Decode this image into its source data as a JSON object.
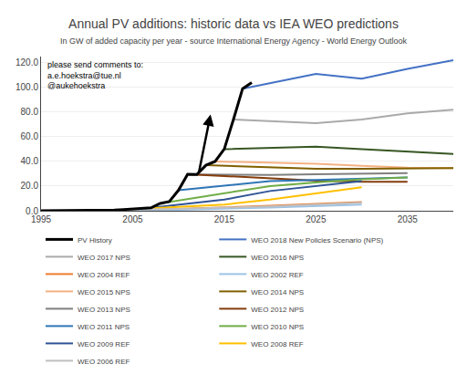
{
  "chart_data": {
    "type": "line",
    "title": "Annual PV additions: historic data vs IEA WEO predictions",
    "subtitle": "In GW of added capacity per year - source International Energy Agency - World Energy Outlook",
    "annotations": [
      "please send comments to:\na.e.hoekstra@tue.nl\n@aukehoekstra"
    ],
    "arrow": {
      "from": [
        2012.2,
        30.0
      ],
      "to": [
        2013.5,
        78.0
      ]
    },
    "xlim": [
      1995,
      2040
    ],
    "ylim": [
      0.0,
      125.0
    ],
    "xticks": [
      1995,
      2005,
      2015,
      2025,
      2035
    ],
    "yticks": [
      {
        "value": 0.0,
        "label": "0.0"
      },
      {
        "value": 20.0,
        "label": "20.0"
      },
      {
        "value": 40.0,
        "label": "40.0"
      },
      {
        "value": 60.0,
        "label": "60.0"
      },
      {
        "value": 80.0,
        "label": "80.0"
      },
      {
        "value": 100.0,
        "label": "100.0"
      },
      {
        "value": 120.0,
        "label": "120.0"
      }
    ],
    "grid": "y",
    "legend": "bottom",
    "series": [
      {
        "name": "PV History",
        "color": "#000000",
        "x": [
          1995,
          1996,
          1997,
          1998,
          1999,
          2000,
          2001,
          2002,
          2003,
          2004,
          2005,
          2006,
          2007,
          2008,
          2009,
          2010,
          2011,
          2012,
          2013,
          2014,
          2015,
          2016,
          2017,
          2018
        ],
        "values": [
          0.08,
          0.09,
          0.13,
          0.16,
          0.2,
          0.28,
          0.34,
          0.45,
          0.59,
          1.0,
          1.45,
          1.74,
          2.39,
          5.94,
          7.5,
          16.6,
          29.6,
          29.4,
          36.9,
          40.0,
          50.0,
          74.0,
          99.0,
          104.0
        ]
      },
      {
        "name": "WEO 2018 New Policies Scenario (NPS)",
        "color": "#4472c4",
        "x": [
          2017,
          2025,
          2030,
          2035,
          2040
        ],
        "values": [
          99.0,
          111.0,
          107.0,
          115.0,
          122.0
        ]
      },
      {
        "name": "WEO 2017 NPS",
        "color": "#aaaaaa",
        "x": [
          2016,
          2025,
          2030,
          2035,
          2040
        ],
        "values": [
          74.0,
          71.0,
          74.0,
          79.0,
          82.0
        ]
      },
      {
        "name": "WEO 2016 NPS",
        "color": "#375623",
        "x": [
          2015,
          2025,
          2030,
          2035,
          2040
        ],
        "values": [
          50.0,
          52.0,
          50.0,
          48.0,
          46.0
        ]
      },
      {
        "name": "WEO 2004 REF",
        "color": "#ed7d31",
        "x": [
          2002,
          2010,
          2020,
          2030
        ],
        "values": [
          0.45,
          1.5,
          4.0,
          7.0
        ]
      },
      {
        "name": "WEO 2002 REF",
        "color": "#9dc3e6",
        "x": [
          2000,
          2010,
          2020,
          2030
        ],
        "values": [
          0.28,
          0.8,
          2.5,
          5.0
        ]
      },
      {
        "name": "WEO 2015 NPS",
        "color": "#f4b183",
        "x": [
          2014,
          2025,
          2030,
          2035,
          2040
        ],
        "values": [
          40.0,
          38.0,
          36.5,
          35.0,
          34.5
        ]
      },
      {
        "name": "WEO 2014 NPS",
        "color": "#806000",
        "x": [
          2013,
          2025,
          2030,
          2035,
          2040
        ],
        "values": [
          36.9,
          34.0,
          34.0,
          34.0,
          34.5
        ]
      },
      {
        "name": "WEO 2013 NPS",
        "color": "#7f7f7f",
        "x": [
          2012,
          2020,
          2025,
          2030,
          2035
        ],
        "values": [
          29.4,
          29.0,
          29.5,
          30.0,
          30.5
        ]
      },
      {
        "name": "WEO 2012 NPS",
        "color": "#843c0c",
        "x": [
          2011,
          2020,
          2025,
          2030,
          2035
        ],
        "values": [
          29.6,
          26.0,
          24.5,
          23.5,
          23.5
        ]
      },
      {
        "name": "WEO 2011 NPS",
        "color": "#2e75b6",
        "x": [
          2010,
          2020,
          2025,
          2030,
          2035
        ],
        "values": [
          16.6,
          24.0,
          25.0,
          26.0,
          27.0
        ]
      },
      {
        "name": "WEO 2010 NPS",
        "color": "#70ad47",
        "x": [
          2008,
          2015,
          2020,
          2025,
          2030,
          2035
        ],
        "values": [
          5.94,
          14.0,
          20.0,
          23.0,
          25.5,
          27.0
        ]
      },
      {
        "name": "WEO 2009 REF",
        "color": "#2f5496",
        "x": [
          2007,
          2015,
          2020,
          2030
        ],
        "values": [
          2.39,
          9.0,
          16.0,
          24.0
        ]
      },
      {
        "name": "WEO 2008 REF",
        "color": "#ffc000",
        "x": [
          2006,
          2015,
          2020,
          2030
        ],
        "values": [
          1.74,
          5.0,
          9.0,
          19.0
        ]
      },
      {
        "name": "WEO 2006 REF",
        "color": "#c0c0c0",
        "x": [
          2004,
          2010,
          2020,
          2030
        ],
        "values": [
          1.0,
          1.5,
          3.5,
          6.5
        ]
      }
    ]
  }
}
